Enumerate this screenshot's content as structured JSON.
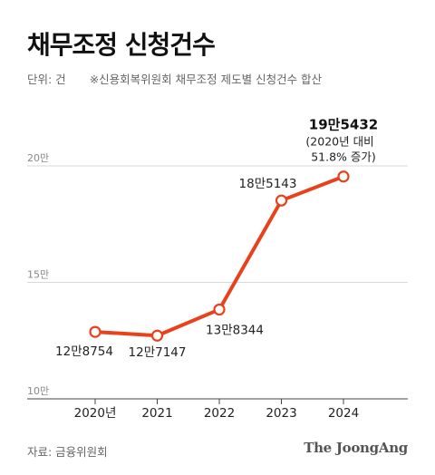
{
  "header": {
    "title": "채무조정 신청건수",
    "unit": "단위: 건",
    "note": "※신용회복위원회 채무조정 제도별 신청건수 합산"
  },
  "footer": {
    "source": "자료: 금융위원회",
    "brand": "The JoongAng"
  },
  "colors": {
    "line": "#e8421c",
    "grid": "#d9d9d9",
    "axis": "#444444"
  },
  "chart_data": {
    "type": "line",
    "title": "채무조정 신청건수",
    "x": [
      "2020년",
      "2021",
      "2022",
      "2023",
      "2024"
    ],
    "series": [
      {
        "values": [
          128754,
          127147,
          138344,
          185143,
          195432
        ]
      }
    ],
    "point_labels": [
      "12만8754",
      "12만7147",
      "13만8344",
      "18만5143",
      "19만5432"
    ],
    "highlight": {
      "label": "19만5432",
      "note_line1": "(2020년 대비",
      "note_line2": "51.8% 증가)"
    },
    "y_ticks": [
      100000,
      150000,
      200000
    ],
    "y_tick_labels": [
      "10만",
      "15만",
      "20만"
    ],
    "ylim": [
      100000,
      200000
    ],
    "grid": true
  }
}
